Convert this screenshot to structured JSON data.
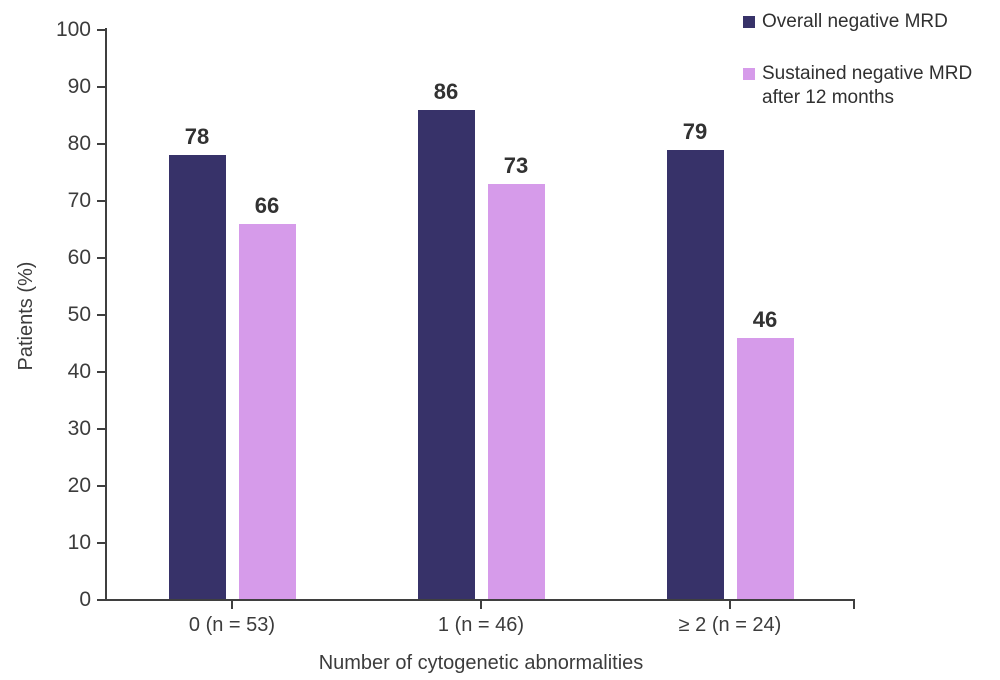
{
  "chart_data": {
    "type": "bar",
    "categories": [
      "0 (n = 53)",
      "1 (n = 46)",
      "≥ 2 (n = 24)"
    ],
    "series": [
      {
        "name": "Overall negative MRD",
        "color": "#373269",
        "values": [
          78,
          86,
          79
        ]
      },
      {
        "name": "Sustained negative MRD after 12 months",
        "color": "#D69BEA",
        "values": [
          66,
          73,
          46
        ]
      }
    ],
    "xlabel": "Number of cytogenetic abnormalities",
    "ylabel": "Patients (%)",
    "ylim": [
      0,
      100
    ],
    "ytick_step": 10,
    "grid": false,
    "legend_position": "top-right",
    "value_labels": true,
    "axis_color": "#3f3f3f"
  }
}
